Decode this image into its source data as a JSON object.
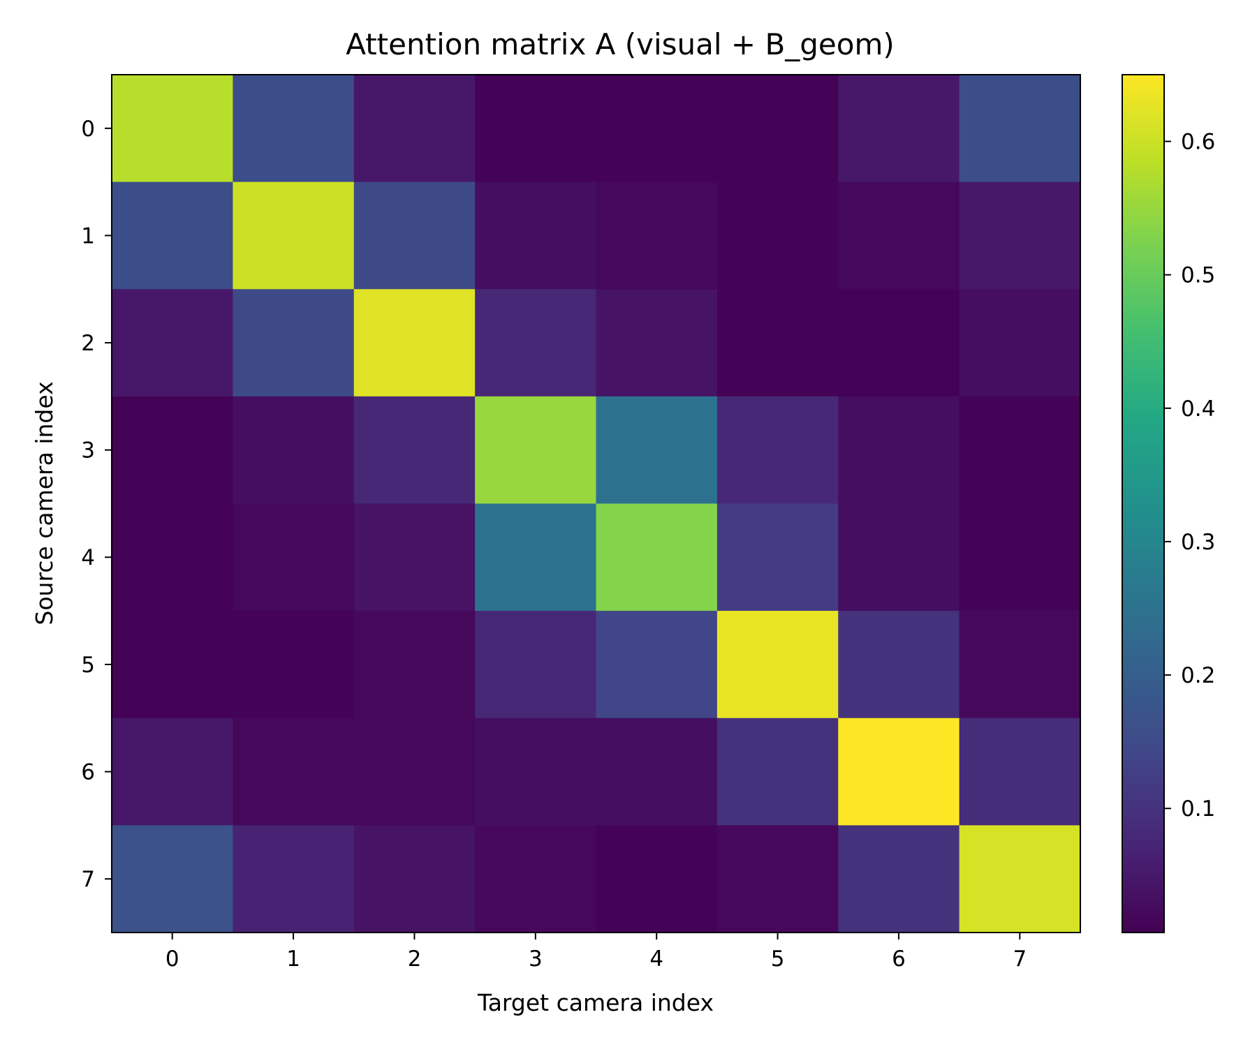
{
  "chart_data": {
    "type": "heatmap",
    "title": "Attention matrix A (visual + B_geom)",
    "xlabel": "Target camera index",
    "ylabel": "Source camera index",
    "x_categories": [
      "0",
      "1",
      "2",
      "3",
      "4",
      "5",
      "6",
      "7"
    ],
    "y_categories": [
      "0",
      "1",
      "2",
      "3",
      "4",
      "5",
      "6",
      "7"
    ],
    "values": [
      [
        0.58,
        0.16,
        0.05,
        0.01,
        0.01,
        0.01,
        0.05,
        0.16
      ],
      [
        0.16,
        0.6,
        0.15,
        0.03,
        0.02,
        0.01,
        0.02,
        0.05
      ],
      [
        0.05,
        0.15,
        0.62,
        0.08,
        0.04,
        0.01,
        0.01,
        0.03
      ],
      [
        0.01,
        0.03,
        0.08,
        0.55,
        0.25,
        0.08,
        0.03,
        0.01
      ],
      [
        0.01,
        0.02,
        0.04,
        0.25,
        0.53,
        0.12,
        0.03,
        0.01
      ],
      [
        0.01,
        0.01,
        0.02,
        0.08,
        0.14,
        0.63,
        0.1,
        0.02
      ],
      [
        0.05,
        0.02,
        0.02,
        0.03,
        0.03,
        0.1,
        0.65,
        0.09
      ],
      [
        0.17,
        0.07,
        0.04,
        0.02,
        0.01,
        0.02,
        0.1,
        0.61
      ]
    ],
    "colormap": "viridis",
    "vmin": 0.007,
    "vmax": 0.65,
    "colorbar_ticks": [
      0.1,
      0.2,
      0.3,
      0.4,
      0.5,
      0.6
    ],
    "colorbar_tick_labels": [
      "0.1",
      "0.2",
      "0.3",
      "0.4",
      "0.5",
      "0.6"
    ]
  }
}
